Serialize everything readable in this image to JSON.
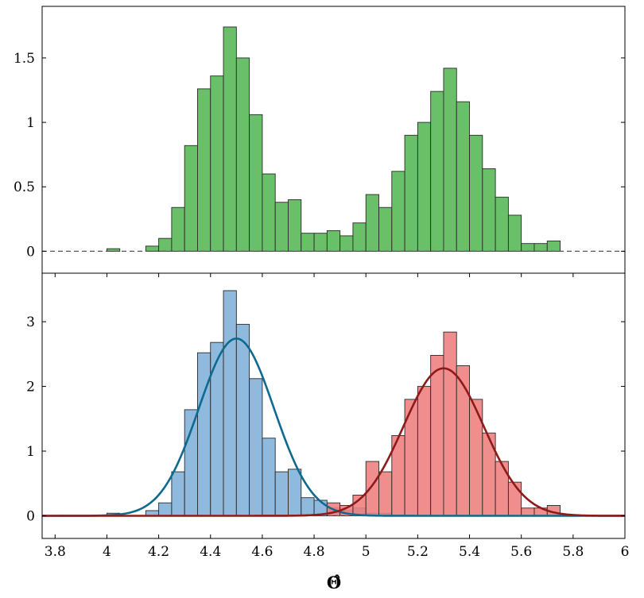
{
  "chart_data": [
    {
      "type": "bar",
      "panel": "top",
      "title": "",
      "xlabel": "",
      "ylabel": "",
      "xlim": [
        3.75,
        6.0
      ],
      "ylim": [
        -0.17,
        1.9
      ],
      "yticks": [
        0,
        0.5,
        1,
        1.5
      ],
      "ytick_labels": [
        "0",
        "0.5",
        "1",
        "1.5"
      ],
      "grid": false,
      "baseline": {
        "y": 0,
        "style": "dashed",
        "color": "#555555"
      },
      "bin_width": 0.05,
      "series": [
        {
          "color": "#6abf69",
          "edge_color": "#2a2a2a",
          "bin_starts": [
            4.0,
            4.05,
            4.1,
            4.15,
            4.2,
            4.25,
            4.3,
            4.35,
            4.4,
            4.45,
            4.5,
            4.55,
            4.6,
            4.65,
            4.7,
            4.75,
            4.8,
            4.85,
            4.9,
            4.95,
            5.0,
            5.05,
            5.1,
            5.15,
            5.2,
            5.25,
            5.3,
            5.35,
            5.4,
            5.45,
            5.5,
            5.55,
            5.6,
            5.65,
            5.7
          ],
          "values": [
            0.02,
            0.0,
            0.0,
            0.04,
            0.1,
            0.34,
            0.82,
            1.26,
            1.36,
            1.74,
            1.5,
            1.06,
            0.6,
            0.38,
            0.4,
            0.14,
            0.14,
            0.16,
            0.12,
            0.22,
            0.44,
            0.34,
            0.62,
            0.9,
            1.0,
            1.24,
            1.42,
            1.16,
            0.9,
            0.64,
            0.42,
            0.28,
            0.06,
            0.06,
            0.08
          ]
        }
      ]
    },
    {
      "type": "bar",
      "panel": "bottom",
      "title": "",
      "xlabel": "Θ̂",
      "ylabel": "",
      "xlim": [
        3.75,
        6.0
      ],
      "ylim": [
        -0.35,
        3.75
      ],
      "xticks": [
        3.8,
        4,
        4.2,
        4.4,
        4.6,
        4.8,
        5,
        5.2,
        5.4,
        5.6,
        5.8,
        6
      ],
      "xtick_labels": [
        "3.8",
        "4",
        "4.2",
        "4.4",
        "4.6",
        "4.8",
        "5",
        "5.2",
        "5.4",
        "5.6",
        "5.8",
        "6"
      ],
      "yticks": [
        0,
        1,
        2,
        3
      ],
      "ytick_labels": [
        "0",
        "1",
        "2",
        "3"
      ],
      "grid": false,
      "baseline": {
        "y": 0,
        "style": "dashed",
        "color": "#555555"
      },
      "bin_width": 0.05,
      "series": [
        {
          "color": "#7fb0da",
          "edge_color": "#2a2a2a",
          "bin_starts": [
            4.0,
            4.05,
            4.1,
            4.15,
            4.2,
            4.25,
            4.3,
            4.35,
            4.4,
            4.45,
            4.5,
            4.55,
            4.6,
            4.65,
            4.7,
            4.75,
            4.8,
            4.85,
            4.9,
            4.95,
            5.0,
            5.05
          ],
          "values": [
            0.04,
            0.0,
            0.0,
            0.08,
            0.2,
            0.68,
            1.64,
            2.52,
            2.68,
            3.48,
            2.96,
            2.12,
            1.2,
            0.68,
            0.72,
            0.28,
            0.24,
            0.12,
            0.08,
            0.12,
            0.04,
            0.04
          ]
        },
        {
          "color": "#ee7d7d",
          "edge_color": "#2a2a2a",
          "bin_starts": [
            4.85,
            4.9,
            4.95,
            5.0,
            5.05,
            5.1,
            5.15,
            5.2,
            5.25,
            5.3,
            5.35,
            5.4,
            5.45,
            5.5,
            5.55,
            5.6,
            5.65,
            5.7
          ],
          "values": [
            0.2,
            0.16,
            0.32,
            0.84,
            0.68,
            1.24,
            1.8,
            2.0,
            2.48,
            2.84,
            2.32,
            1.8,
            1.28,
            0.84,
            0.52,
            0.12,
            0.12,
            0.16
          ]
        },
        {
          "type": "line",
          "curve": "gaussian",
          "color": "#0e6a8e",
          "mean": 4.5,
          "std": 0.145,
          "peak": 2.74
        },
        {
          "type": "line",
          "curve": "gaussian",
          "color": "#8e1a1a",
          "mean": 5.3,
          "std": 0.155,
          "peak": 2.28
        }
      ]
    }
  ]
}
